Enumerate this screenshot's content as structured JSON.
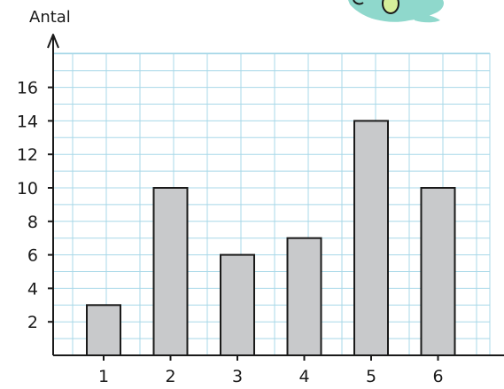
{
  "chart_data": {
    "type": "bar",
    "title": "",
    "xlabel": "",
    "ylabel": "Antal",
    "categories": [
      "1",
      "2",
      "3",
      "4",
      "5",
      "6"
    ],
    "values": [
      3,
      10,
      6,
      7,
      14,
      10
    ],
    "ylim": [
      0,
      18
    ],
    "yticks": [
      2,
      4,
      6,
      8,
      10,
      12,
      14,
      16
    ],
    "grid": true,
    "colors": {
      "bar_fill": "#c8c9cb",
      "bar_stroke": "#1a1a1a",
      "grid": "#a8d8e8",
      "axis": "#1a1a1a",
      "decoration": "#8fd8cc",
      "decoration_accent": "#d6ef9a"
    }
  }
}
